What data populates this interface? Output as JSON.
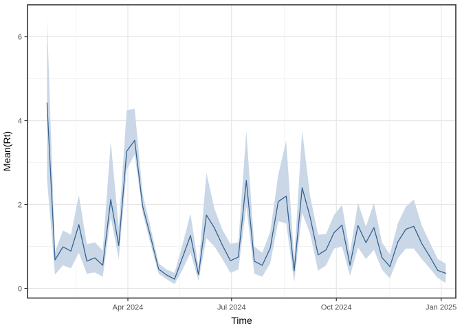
{
  "figure": {
    "background": "#ffffff",
    "panel_background": "#ffffff",
    "panel_border_color": "#333333",
    "grid_major_color": "#e6e6e6",
    "grid_minor_color": "#f2f2f2",
    "line_color": "#35618f",
    "ribbon_color": "#c9d7e7",
    "tick_color": "#333333",
    "axis_text_color": "#4d4d4d",
    "axis_title_color": "#000000"
  },
  "chart_data": {
    "type": "line",
    "title": "",
    "xlabel": "Time",
    "ylabel": "Mean(Rt)",
    "ylim": [
      0,
      6.5
    ],
    "grid": true,
    "legend": false,
    "ribbon": "confidence interval band around weekly mean Rt",
    "x_ticks": [
      "Apr 2024",
      "Jul 2024",
      "Oct 2024",
      "Jan 2025"
    ],
    "y_ticks": [
      "0",
      "2",
      "4",
      "6"
    ],
    "x": [
      "2024-01-21",
      "2024-01-28",
      "2024-02-04",
      "2024-02-11",
      "2024-02-18",
      "2024-02-25",
      "2024-03-03",
      "2024-03-10",
      "2024-03-17",
      "2024-03-24",
      "2024-03-31",
      "2024-04-07",
      "2024-04-14",
      "2024-04-21",
      "2024-04-28",
      "2024-05-05",
      "2024-05-12",
      "2024-05-19",
      "2024-05-26",
      "2024-06-02",
      "2024-06-09",
      "2024-06-16",
      "2024-06-23",
      "2024-06-30",
      "2024-07-07",
      "2024-07-14",
      "2024-07-21",
      "2024-07-28",
      "2024-08-04",
      "2024-08-11",
      "2024-08-18",
      "2024-08-25",
      "2024-09-01",
      "2024-09-08",
      "2024-09-15",
      "2024-09-22",
      "2024-09-29",
      "2024-10-06",
      "2024-10-13",
      "2024-10-20",
      "2024-10-27",
      "2024-11-03",
      "2024-11-10",
      "2024-11-17",
      "2024-11-24",
      "2024-12-01",
      "2024-12-08",
      "2024-12-15",
      "2024-12-22",
      "2024-12-29",
      "2025-01-05"
    ],
    "series": [
      {
        "name": "Mean(Rt)",
        "values": [
          4.42,
          0.68,
          0.99,
          0.89,
          1.52,
          0.65,
          0.73,
          0.55,
          2.12,
          1.02,
          3.27,
          3.53,
          1.96,
          1.23,
          0.46,
          0.32,
          0.22,
          0.74,
          1.26,
          0.33,
          1.75,
          1.44,
          1.03,
          0.66,
          0.75,
          2.57,
          0.65,
          0.55,
          0.96,
          2.07,
          2.2,
          0.42,
          2.4,
          1.7,
          0.8,
          0.92,
          1.33,
          1.51,
          0.55,
          1.5,
          1.09,
          1.45,
          0.74,
          0.52,
          1.11,
          1.41,
          1.48,
          1.07,
          0.76,
          0.43,
          0.36
        ],
        "lower": [
          2.6,
          0.33,
          0.55,
          0.48,
          0.85,
          0.35,
          0.38,
          0.28,
          1.7,
          0.7,
          2.83,
          3.19,
          1.8,
          1.05,
          0.35,
          0.22,
          0.1,
          0.45,
          0.85,
          0.18,
          1.2,
          1.0,
          0.7,
          0.37,
          0.45,
          1.95,
          0.35,
          0.28,
          0.6,
          1.6,
          1.55,
          0.15,
          1.8,
          1.3,
          0.42,
          0.55,
          0.95,
          1.0,
          0.3,
          0.98,
          0.7,
          0.92,
          0.45,
          0.24,
          0.72,
          0.95,
          0.95,
          0.7,
          0.48,
          0.25,
          0.13
        ],
        "upper": [
          6.44,
          0.87,
          1.38,
          1.28,
          2.23,
          1.05,
          1.1,
          0.9,
          3.5,
          1.45,
          4.25,
          4.28,
          2.26,
          1.45,
          0.6,
          0.45,
          0.37,
          1.05,
          1.78,
          0.5,
          2.75,
          1.9,
          1.4,
          1.06,
          1.1,
          3.75,
          1.0,
          0.85,
          1.35,
          2.7,
          3.52,
          0.7,
          3.76,
          2.2,
          1.28,
          1.3,
          1.75,
          1.99,
          0.85,
          2.04,
          1.47,
          2.04,
          1.1,
          0.81,
          1.55,
          1.95,
          2.12,
          1.5,
          1.1,
          0.7,
          0.59
        ]
      }
    ]
  }
}
